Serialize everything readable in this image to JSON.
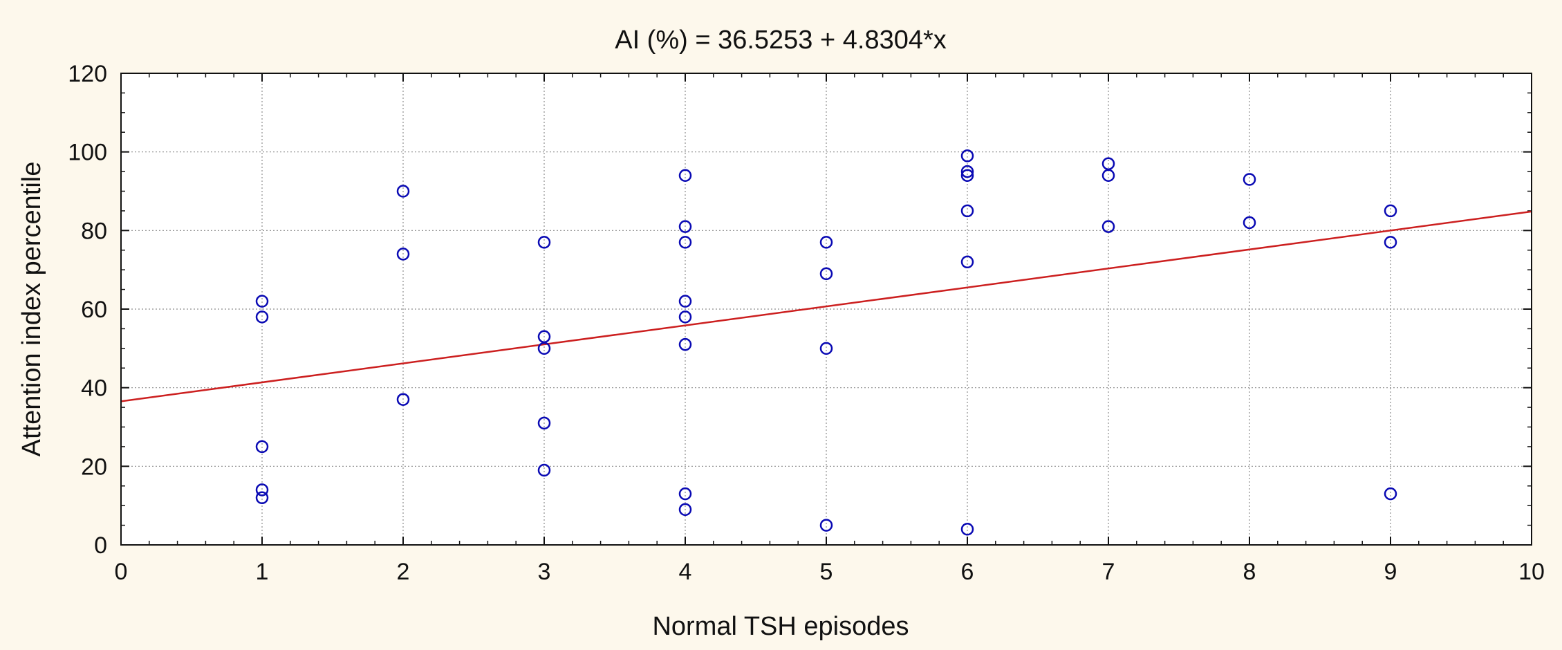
{
  "chart_data": {
    "type": "scatter",
    "title": "AI (%) = 36.5253 + 4.8304*x",
    "xlabel": "Normal TSH episodes",
    "ylabel": "Attention index percentile",
    "xlim": [
      0,
      10
    ],
    "ylim": [
      0,
      120
    ],
    "x_ticks": [
      "0",
      "1",
      "2",
      "3",
      "4",
      "5",
      "6",
      "7",
      "8",
      "9",
      "10"
    ],
    "y_ticks": [
      "0",
      "20",
      "40",
      "60",
      "80",
      "100",
      "120"
    ],
    "grid": true,
    "points": [
      {
        "x": 1,
        "y": 62
      },
      {
        "x": 1,
        "y": 58
      },
      {
        "x": 1,
        "y": 25
      },
      {
        "x": 1,
        "y": 14
      },
      {
        "x": 1,
        "y": 12
      },
      {
        "x": 2,
        "y": 90
      },
      {
        "x": 2,
        "y": 74
      },
      {
        "x": 2,
        "y": 37
      },
      {
        "x": 3,
        "y": 77
      },
      {
        "x": 3,
        "y": 53
      },
      {
        "x": 3,
        "y": 50
      },
      {
        "x": 3,
        "y": 31
      },
      {
        "x": 3,
        "y": 19
      },
      {
        "x": 4,
        "y": 94
      },
      {
        "x": 4,
        "y": 81
      },
      {
        "x": 4,
        "y": 77
      },
      {
        "x": 4,
        "y": 62
      },
      {
        "x": 4,
        "y": 58
      },
      {
        "x": 4,
        "y": 51
      },
      {
        "x": 4,
        "y": 13
      },
      {
        "x": 4,
        "y": 9
      },
      {
        "x": 5,
        "y": 77
      },
      {
        "x": 5,
        "y": 69
      },
      {
        "x": 5,
        "y": 50
      },
      {
        "x": 5,
        "y": 5
      },
      {
        "x": 6,
        "y": 99
      },
      {
        "x": 6,
        "y": 95
      },
      {
        "x": 6,
        "y": 94
      },
      {
        "x": 6,
        "y": 85
      },
      {
        "x": 6,
        "y": 72
      },
      {
        "x": 6,
        "y": 4
      },
      {
        "x": 7,
        "y": 97
      },
      {
        "x": 7,
        "y": 94
      },
      {
        "x": 7,
        "y": 81
      },
      {
        "x": 8,
        "y": 93
      },
      {
        "x": 8,
        "y": 82
      },
      {
        "x": 9,
        "y": 85
      },
      {
        "x": 9,
        "y": 77
      },
      {
        "x": 9,
        "y": 13
      }
    ],
    "regression": {
      "intercept": 36.5253,
      "slope": 4.8304
    },
    "colors": {
      "points": "#0a0ab4",
      "regression_line": "#cc1f1f",
      "grid": "#8c8c8c",
      "axis": "#111111",
      "background": "#fdf8ec",
      "plot_background": "#ffffff"
    }
  }
}
